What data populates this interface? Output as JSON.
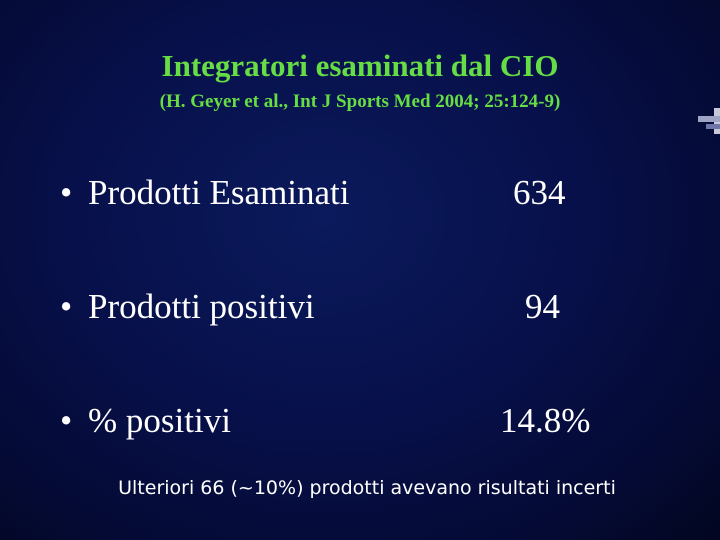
{
  "slide": {
    "title": "Integratori esaminati dal CIO",
    "subtitle": "(H. Geyer et al., Int J Sports Med 2004; 25:124-9)",
    "bullet_glyph": "•",
    "rows": [
      {
        "label": "Prodotti Esaminati",
        "value": "634"
      },
      {
        "label": "Prodotti positivi",
        "value": "94"
      },
      {
        "label": "% positivi",
        "value": "14.8%"
      }
    ],
    "footnote": "Ulteriori 66 (~10%) prodotti avevano risultati incerti",
    "colors": {
      "background": "#07104a",
      "title": "#66dd44",
      "body_text": "#ffffff"
    }
  }
}
